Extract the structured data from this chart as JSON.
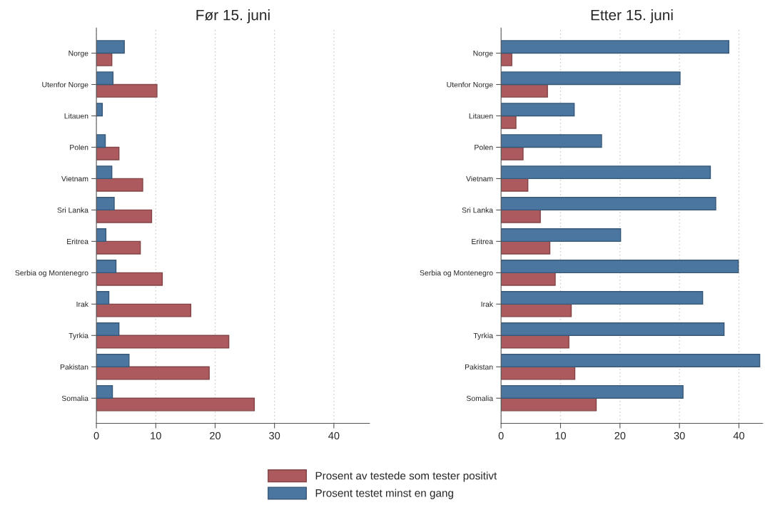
{
  "chart_data": [
    {
      "type": "bar",
      "orientation": "horizontal",
      "title": "Før 15. juni",
      "categories": [
        "Norge",
        "Utenfor Norge",
        "Litauen",
        "Polen",
        "Vietnam",
        "Sri Lanka",
        "Eritrea",
        "Serbia og Montenegro",
        "Irak",
        "Tyrkia",
        "Pakistan",
        "Somalia"
      ],
      "series": [
        {
          "name": "Prosent av testede som tester positivt",
          "color": "#ad5a5e",
          "values": [
            2.6,
            10.2,
            null,
            3.8,
            7.8,
            9.3,
            7.4,
            11.1,
            15.9,
            22.3,
            19.0,
            26.6
          ]
        },
        {
          "name": "Prosent testet minst en gang",
          "color": "#4a76a0",
          "values": [
            4.7,
            2.8,
            1.0,
            1.5,
            2.6,
            3.0,
            1.6,
            3.3,
            2.1,
            3.8,
            5.5,
            2.7
          ]
        }
      ],
      "xlim": [
        0,
        46
      ],
      "xticks": [
        0,
        10,
        20,
        30,
        40
      ],
      "grid": "x",
      "legend": "bottom"
    },
    {
      "type": "bar",
      "orientation": "horizontal",
      "title": "Etter 15. juni",
      "categories": [
        "Norge",
        "Utenfor Norge",
        "Litauen",
        "Polen",
        "Vietnam",
        "Sri Lanka",
        "Eritrea",
        "Serbia og Montenegro",
        "Irak",
        "Tyrkia",
        "Pakistan",
        "Somalia"
      ],
      "series": [
        {
          "color": "#ad5a5e",
          "values": [
            1.8,
            7.8,
            2.5,
            3.7,
            4.5,
            6.6,
            8.2,
            9.1,
            11.8,
            11.4,
            12.4,
            16.0
          ]
        },
        {
          "color": "#4a76a0",
          "values": [
            38.3,
            30.1,
            12.3,
            16.9,
            35.2,
            36.1,
            20.1,
            39.9,
            33.9,
            37.5,
            43.5,
            30.6
          ]
        }
      ],
      "xlim": [
        0,
        44
      ],
      "xticks": [
        0,
        10,
        20,
        30,
        40
      ],
      "grid": "x"
    }
  ]
}
